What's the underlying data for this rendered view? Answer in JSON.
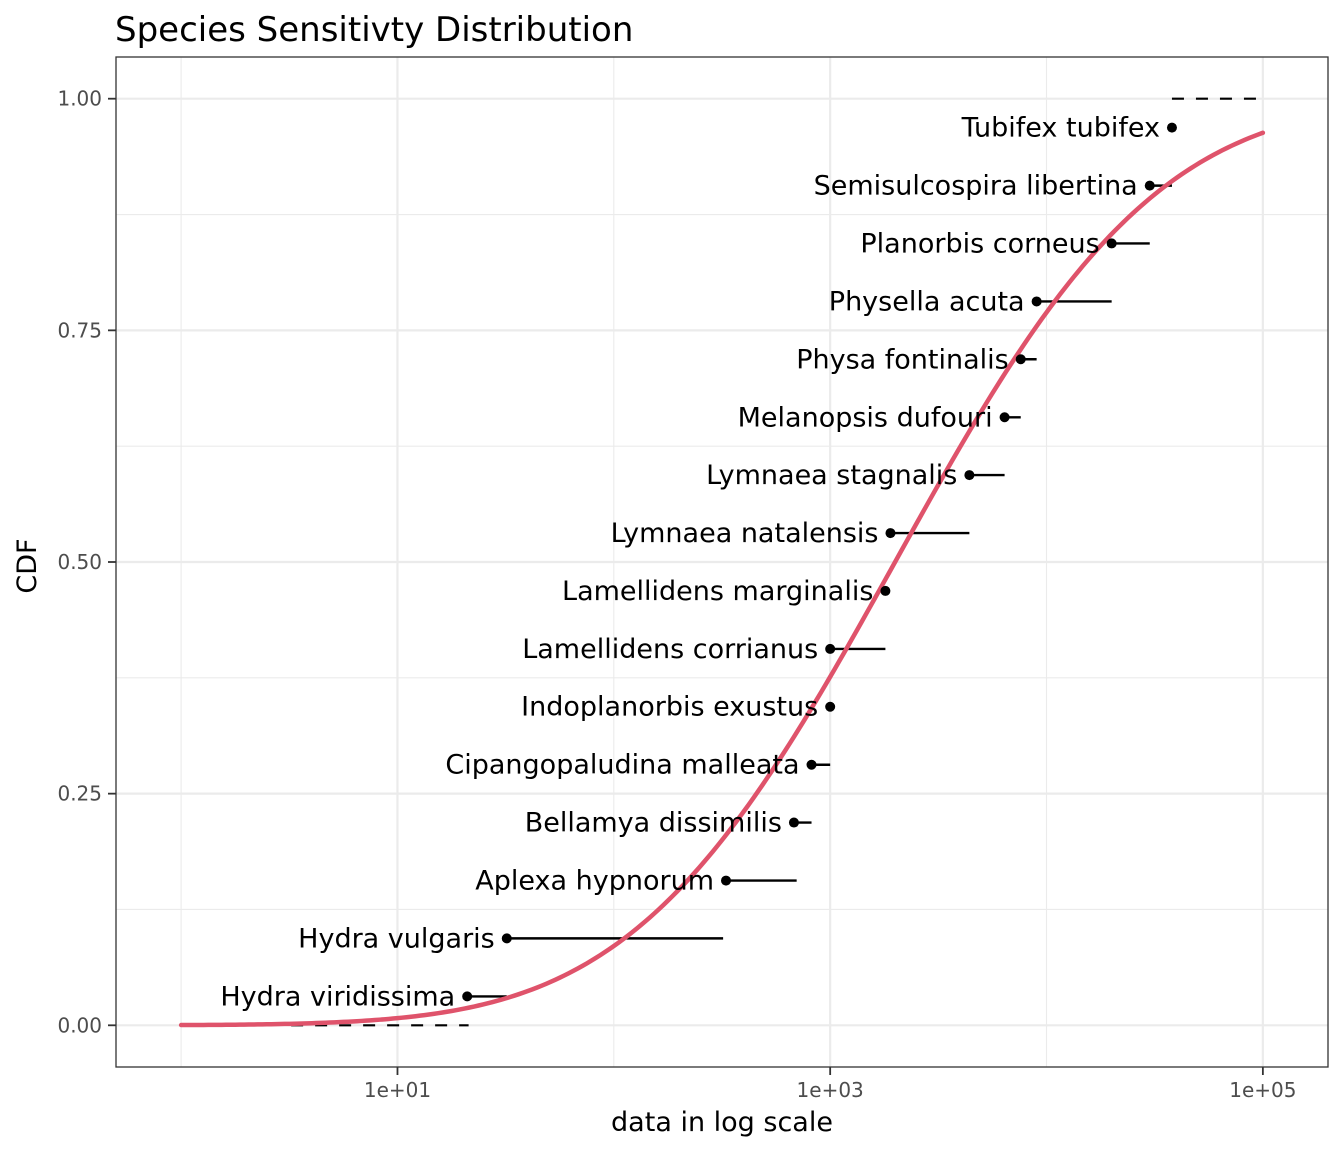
{
  "chart_data": {
    "type": "scatter",
    "title": "Species Sensitivty Distribution",
    "xlabel": "data in log scale",
    "ylabel": "CDF",
    "x_scale": "log10",
    "xlim": [
      0.5,
      200000
    ],
    "ylim": [
      -0.045,
      1.045
    ],
    "x_ticks": [
      {
        "value": 10,
        "label": "1e+01"
      },
      {
        "value": 1000,
        "label": "1e+03"
      },
      {
        "value": 100000,
        "label": "1e+05"
      }
    ],
    "y_ticks": [
      {
        "value": 0.0,
        "label": "0.00"
      },
      {
        "value": 0.25,
        "label": "0.25"
      },
      {
        "value": 0.5,
        "label": "0.50"
      },
      {
        "value": 0.75,
        "label": "0.75"
      },
      {
        "value": 1.0,
        "label": "1.00"
      }
    ],
    "grid": true,
    "points": [
      {
        "species": "Hydra viridissima",
        "cdf": 0.0312,
        "x": 21,
        "x_upper": 32
      },
      {
        "species": "Hydra vulgaris",
        "cdf": 0.0938,
        "x": 32,
        "x_upper": 320
      },
      {
        "species": "Aplexa hypnorum",
        "cdf": 0.1562,
        "x": 330,
        "x_upper": 700
      },
      {
        "species": "Bellamya dissimilis",
        "cdf": 0.2188,
        "x": 680,
        "x_upper": 820
      },
      {
        "species": "Cipangopaludina malleata",
        "cdf": 0.2812,
        "x": 820,
        "x_upper": 1000
      },
      {
        "species": "Indoplanorbis exustus",
        "cdf": 0.3438,
        "x": 1000,
        "x_upper": 1000
      },
      {
        "species": "Lamellidens corrianus",
        "cdf": 0.4062,
        "x": 1000,
        "x_upper": 1800
      },
      {
        "species": "Lamellidens marginalis",
        "cdf": 0.4688,
        "x": 1800,
        "x_upper": 1800
      },
      {
        "species": "Lymnaea natalensis",
        "cdf": 0.5312,
        "x": 1900,
        "x_upper": 4400
      },
      {
        "species": "Lymnaea stagnalis",
        "cdf": 0.5938,
        "x": 4400,
        "x_upper": 6400
      },
      {
        "species": "Melanopsis dufouri",
        "cdf": 0.6562,
        "x": 6400,
        "x_upper": 7600
      },
      {
        "species": "Physa fontinalis",
        "cdf": 0.7188,
        "x": 7600,
        "x_upper": 9000
      },
      {
        "species": "Physella acuta",
        "cdf": 0.7812,
        "x": 9000,
        "x_upper": 20000
      },
      {
        "species": "Planorbis corneus",
        "cdf": 0.8438,
        "x": 20000,
        "x_upper": 30000
      },
      {
        "species": "Semisulcospira libertina",
        "cdf": 0.9062,
        "x": 30000,
        "x_upper": 38000
      },
      {
        "species": "Tubifex tubifex",
        "cdf": 0.9688,
        "x": 38000,
        "x_upper": null
      }
    ],
    "open_intervals": [
      {
        "cdf": 0.0,
        "x_from": 20,
        "x_to": 20
      },
      {
        "cdf": 1.0,
        "x_from": 38000,
        "x_to": 100000
      }
    ],
    "fit_curve": {
      "distribution": "lognormal",
      "meanlog_log10": 3.3,
      "sdlog_log10": 0.95,
      "x_from": 1,
      "x_to": 100000,
      "color": "#DF536B"
    },
    "colors": {
      "points": "#000000",
      "curve": "#DF536B",
      "grid": "#EBEBEB",
      "panel_border": "#333333"
    }
  }
}
